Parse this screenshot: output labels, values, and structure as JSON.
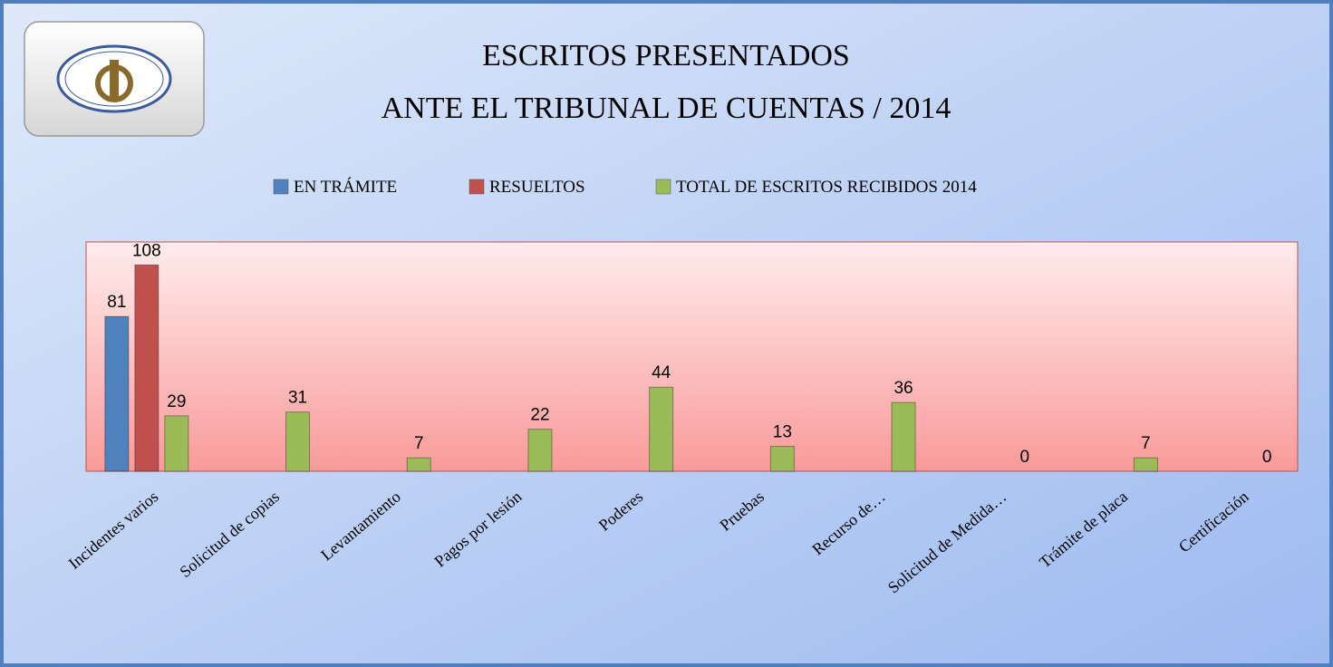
{
  "chart_data": {
    "type": "bar",
    "title": "ESCRITOS PRESENTADOS",
    "subtitle": "ANTE EL TRIBUNAL DE CUENTAS / 2014",
    "categories": [
      "Incidentes varios",
      "Solicitud de copias",
      "Levantamiento",
      "Pagos por lesión",
      "Poderes",
      "Pruebas",
      "Recurso de…",
      "Solicitud de Medida…",
      "Trámite de placa",
      "Certificación"
    ],
    "series": [
      {
        "name": "EN TRÁMITE",
        "color": "#4f81bd",
        "values": [
          81,
          null,
          null,
          null,
          null,
          null,
          null,
          null,
          null,
          null
        ]
      },
      {
        "name": "RESUELTOS",
        "color": "#c0504d",
        "values": [
          108,
          null,
          null,
          null,
          null,
          null,
          null,
          null,
          null,
          null
        ]
      },
      {
        "name": "TOTAL DE ESCRITOS RECIBIDOS 2014",
        "color": "#9bbb59",
        "values": [
          29,
          31,
          7,
          22,
          44,
          13,
          36,
          0,
          7,
          0
        ]
      }
    ],
    "ylim": [
      0,
      120
    ],
    "legend": "top"
  }
}
